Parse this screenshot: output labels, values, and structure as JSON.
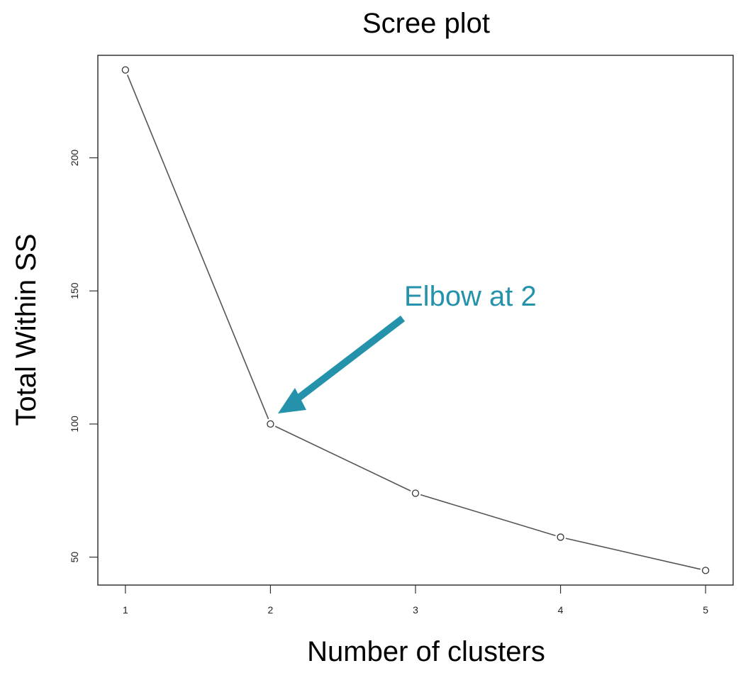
{
  "chart_data": {
    "type": "line",
    "title": "Scree plot",
    "xlabel": "Number of clusters",
    "ylabel": "Total Within SS",
    "x": [
      1,
      2,
      3,
      4,
      5
    ],
    "series": [
      {
        "values": [
          233,
          100,
          74,
          57.5,
          45
        ]
      }
    ],
    "x_ticks": [
      "1",
      "2",
      "3",
      "4",
      "5"
    ],
    "y_ticks": [
      "50",
      "100",
      "150",
      "200"
    ],
    "xlim": [
      0.81,
      5.19
    ],
    "ylim": [
      39.5,
      238.5
    ],
    "grid": false,
    "markers": "open-circle",
    "colors": {
      "line": "#555555",
      "axis": "#333333",
      "annotation": "#2592ac"
    },
    "annotations": [
      {
        "text": "Elbow at 2",
        "points_to": {
          "x": 2,
          "y": 100
        }
      }
    ]
  }
}
